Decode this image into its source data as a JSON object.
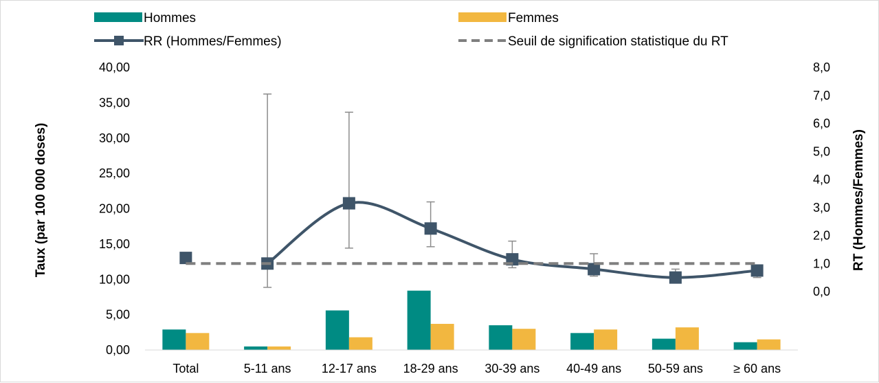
{
  "chart_data": {
    "type": "bar",
    "categories": [
      "Total",
      "5-11 ans",
      "12-17 ans",
      "18-29 ans",
      "30-39 ans",
      "40-49 ans",
      "50-59 ans",
      "≥ 60 ans"
    ],
    "series": [
      {
        "name": "Hommes",
        "type": "bar",
        "axis": "left",
        "color": "#008b83",
        "values": [
          2.9,
          0.5,
          5.6,
          8.4,
          3.5,
          2.4,
          1.6,
          1.1
        ]
      },
      {
        "name": "Femmes",
        "type": "bar",
        "axis": "left",
        "color": "#f2b740",
        "values": [
          2.4,
          0.5,
          1.8,
          3.7,
          3.0,
          2.9,
          3.2,
          1.5
        ]
      },
      {
        "name": "RR (Hommes/Femmes)",
        "type": "line",
        "axis": "right",
        "color": "#3f5569",
        "marker": "square",
        "smooth": true,
        "values": [
          1.2,
          1.0,
          3.15,
          2.25,
          1.15,
          0.8,
          0.5,
          0.75
        ],
        "ci_low": [
          1.05,
          0.15,
          1.55,
          1.6,
          0.85,
          0.55,
          0.4,
          0.5
        ],
        "ci_high": [
          1.35,
          7.05,
          6.4,
          3.2,
          1.8,
          1.35,
          0.8,
          0.9
        ]
      },
      {
        "name": "Seuil de signification statistique du RT",
        "type": "line",
        "axis": "right",
        "color": "#7f7f7f",
        "dashed": true,
        "values": [
          1.0,
          1.0,
          1.0,
          1.0,
          1.0,
          1.0,
          1.0,
          1.0
        ]
      }
    ],
    "ylabel": "Taux (par 100 000 doses)",
    "y2label": "RT (Hommes/Femmes)",
    "ylim": [
      0,
      40
    ],
    "y2lim": [
      0,
      8
    ],
    "yticks": [
      "0,00",
      "5,00",
      "10,00",
      "15,00",
      "20,00",
      "25,00",
      "30,00",
      "35,00",
      "40,00"
    ],
    "y2ticks": [
      "0,0",
      "1,0",
      "2,0",
      "3,0",
      "4,0",
      "5,0",
      "6,0",
      "7,0",
      "8,0"
    ],
    "grid": false,
    "legend_position": "top"
  }
}
